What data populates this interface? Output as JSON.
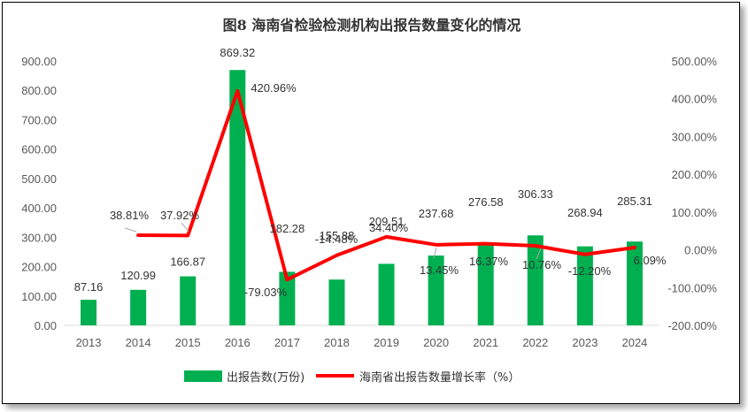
{
  "chart_data": {
    "type": "bar",
    "title": "图8 海南省检验检测机构出报告数量变化的情况",
    "categories": [
      "2013",
      "2014",
      "2015",
      "2016",
      "2017",
      "2018",
      "2019",
      "2020",
      "2021",
      "2022",
      "2023",
      "2024"
    ],
    "series": [
      {
        "name": "出报告数(万份)",
        "type": "bar",
        "axis": "left",
        "color": "#00b050",
        "values": [
          87.16,
          120.99,
          166.87,
          869.32,
          182.28,
          155.88,
          209.51,
          237.68,
          276.58,
          306.33,
          268.94,
          285.31
        ],
        "labels": [
          "87.16",
          "120.99",
          "166.87",
          "869.32",
          "182.28",
          "155.88",
          "209.51",
          "237.68",
          "276.58",
          "306.33",
          "268.94",
          "285.31"
        ]
      },
      {
        "name": "海南省出报告数量增长率（%）",
        "type": "line",
        "axis": "right",
        "color": "#ff0000",
        "values": [
          null,
          38.81,
          37.92,
          420.96,
          -79.03,
          -14.48,
          34.4,
          13.45,
          16.37,
          10.76,
          -12.2,
          6.09
        ],
        "labels": [
          "",
          "38.81%",
          "37.92%",
          "420.96%",
          "-79.03%",
          "-14.48%",
          "34.40%",
          "13.45%",
          "16.37%",
          "10.76%",
          "-12.20%",
          "6.09%"
        ]
      }
    ],
    "y_left": {
      "min": 0,
      "max": 900,
      "step": 100,
      "ticks": [
        "0.00",
        "100.00",
        "200.00",
        "300.00",
        "400.00",
        "500.00",
        "600.00",
        "700.00",
        "800.00",
        "900.00"
      ]
    },
    "y_right": {
      "min": -200,
      "max": 500,
      "step": 100,
      "ticks": [
        "-200.00%",
        "-100.00%",
        "0.00%",
        "100.00%",
        "200.00%",
        "300.00%",
        "400.00%",
        "500.00%"
      ]
    },
    "grid": false,
    "legend_position": "bottom"
  }
}
